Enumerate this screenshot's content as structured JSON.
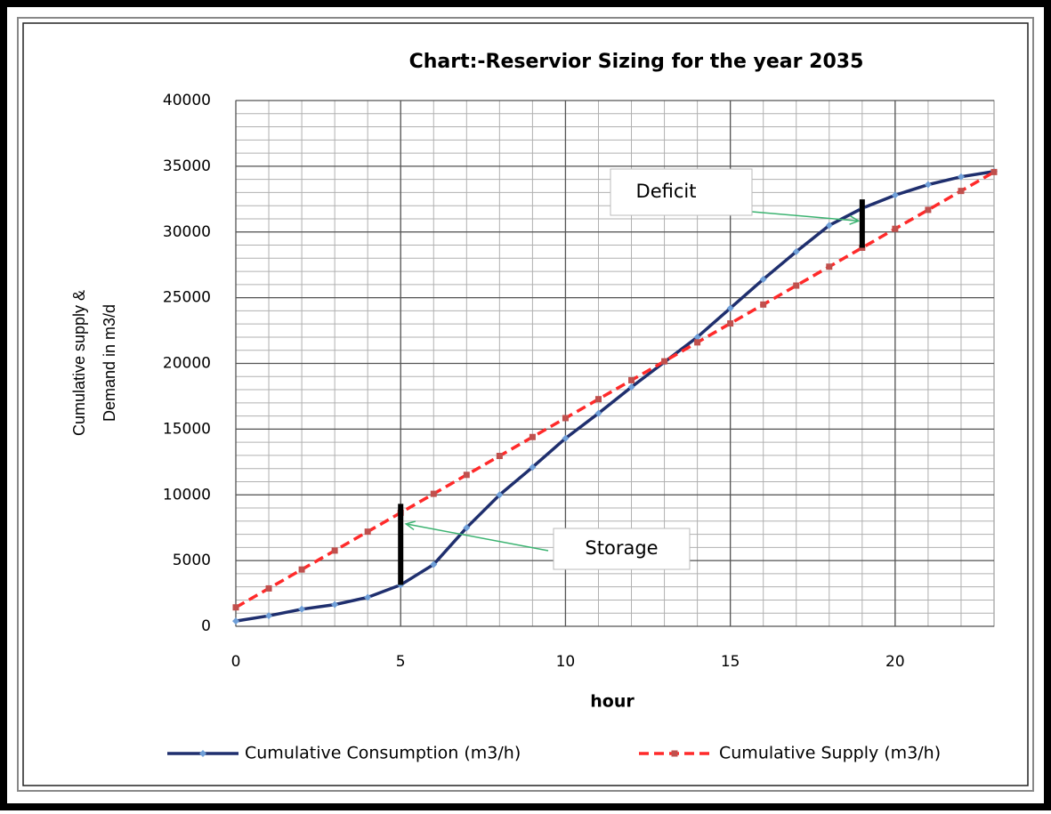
{
  "chart_data": {
    "type": "line",
    "title": "Chart:-Reservior Sizing for the year 2035",
    "x_label": "hour",
    "y_label": [
      "Cumulative supply &",
      "Demand in m3/d"
    ],
    "x": [
      0,
      1,
      2,
      3,
      4,
      5,
      6,
      7,
      8,
      9,
      10,
      11,
      12,
      13,
      14,
      15,
      16,
      17,
      18,
      19,
      20,
      21,
      22,
      23
    ],
    "series": [
      {
        "name": "Cumulative Consumption (m3/h)",
        "color": "#1f2f6e",
        "marker_color": "#6f9fd8",
        "marker": "diamond",
        "dash": false,
        "values": [
          400,
          800,
          1300,
          1650,
          2200,
          3150,
          4700,
          7500,
          10000,
          12100,
          14300,
          16200,
          18200,
          20100,
          22000,
          24200,
          26400,
          28500,
          30500,
          31800,
          32800,
          33600,
          34200,
          34600
        ]
      },
      {
        "name": "Cumulative Supply (m3/h)",
        "color": "#ff2a2a",
        "marker_color": "#c0504d",
        "marker": "square",
        "dash": true,
        "values": [
          1440,
          2880,
          4320,
          5760,
          7200,
          8640,
          10080,
          11520,
          12960,
          14400,
          15840,
          17280,
          18720,
          20160,
          21600,
          23040,
          24480,
          25920,
          27360,
          28800,
          30240,
          31680,
          33120,
          34560
        ]
      }
    ],
    "xlim": [
      0,
      23
    ],
    "xticks": [
      0,
      5,
      10,
      15,
      20
    ],
    "ylim": [
      0,
      40000
    ],
    "yticks": [
      0,
      5000,
      10000,
      15000,
      20000,
      25000,
      30000,
      35000,
      40000
    ],
    "grid": true,
    "minor_grid": true,
    "legend": "bottom",
    "annotations": [
      {
        "text": "Storage",
        "x": 5
      },
      {
        "text": "Deficit",
        "x": 19
      }
    ]
  }
}
